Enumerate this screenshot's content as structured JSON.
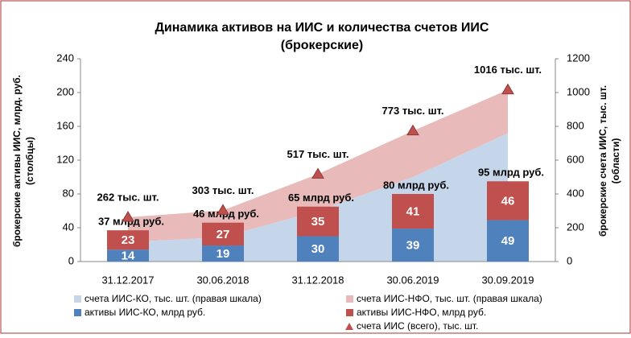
{
  "chart_data": {
    "type": "combo",
    "title": [
      "Динамика активов на ИИС и количества счетов ИИС",
      "(брокерские)"
    ],
    "ylabel": [
      "брокерские активы ИИС, млрд. руб.",
      "(столбцы)"
    ],
    "y2label": [
      "брокерские счета ИИС, тыс. шт.",
      "(области)"
    ],
    "categories": [
      "31.12.2017",
      "30.06.2018",
      "31.12.2018",
      "30.06.2019",
      "30.09.2019"
    ],
    "ylim": [
      0,
      240
    ],
    "yticks": [
      0,
      40,
      80,
      120,
      160,
      200,
      240
    ],
    "y2lim": [
      0,
      1200
    ],
    "y2ticks": [
      0,
      200,
      400,
      600,
      800,
      1000,
      1200
    ],
    "series": [
      {
        "name": "счета ИИС-КО, тыс. шт. (правая шкала)",
        "type": "area",
        "axis": "y2",
        "color": "#c6d6ea",
        "values": [
          115,
          145,
          300,
          500,
          760
        ]
      },
      {
        "name": "счета ИИС-НФО, тыс. шт. (правая шкала)",
        "type": "area",
        "axis": "y2",
        "color": "#e8baba",
        "values": [
          147,
          158,
          217,
          273,
          256
        ]
      },
      {
        "name": "активы ИИС-КО, млрд руб.",
        "type": "bar",
        "color": "#4f81bd",
        "values": [
          14,
          19,
          30,
          39,
          49
        ]
      },
      {
        "name": "активы ИИС-НФО, млрд руб.",
        "type": "bar",
        "color": "#c0504d",
        "values": [
          23,
          27,
          35,
          41,
          46
        ]
      },
      {
        "name": "счета ИИС (всего), тыс. шт.",
        "type": "marker",
        "axis": "y2",
        "color": "#c0504d",
        "values": [
          262,
          303,
          517,
          773,
          1016
        ],
        "value_labels": [
          "262 тыс. шт.",
          "303 тыс. шт.",
          "517 тыс. шт.",
          "773 тыс. шт.",
          "1016 тыс. шт."
        ]
      }
    ],
    "bar_total_labels": [
      "37 млрд руб.",
      "46 млрд руб.",
      "65 млрд руб.",
      "80 млрд руб.",
      "95 млрд руб."
    ]
  }
}
